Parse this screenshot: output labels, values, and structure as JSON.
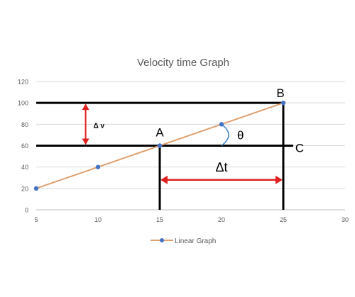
{
  "chart_data": {
    "type": "line",
    "title": "Velocity time Graph",
    "xlim": [
      5,
      30
    ],
    "ylim": [
      0,
      120
    ],
    "x_ticks": [
      5,
      10,
      15,
      20,
      25,
      30
    ],
    "y_ticks": [
      0,
      20,
      40,
      60,
      80,
      100,
      120
    ],
    "grid": "horizontal",
    "legend_position": "bottom",
    "series": [
      {
        "name": "Linear Graph",
        "color": "#E0A070",
        "marker_color": "#4472C4",
        "x": [
          5,
          10,
          15,
          20,
          25
        ],
        "y": [
          20,
          40,
          60,
          80,
          100
        ]
      }
    ],
    "annotations": {
      "point_a": {
        "label": "A",
        "x": 15,
        "y": 60
      },
      "point_b": {
        "label": "B",
        "x": 25,
        "y": 100
      },
      "point_c": {
        "label": "C",
        "x": 25,
        "y": 60
      },
      "delta_v": {
        "label": "Δ v",
        "x": 9,
        "y_from": 60,
        "y_to": 100
      },
      "delta_t": {
        "label": "Δt",
        "x_from": 15,
        "x_to": 25,
        "y": 28
      },
      "theta": {
        "label": "θ",
        "x": 20,
        "y": 60
      },
      "colors": {
        "guide": "#000000",
        "arrow": "#E02020",
        "angle_arc": "#3A7FC0"
      }
    }
  }
}
